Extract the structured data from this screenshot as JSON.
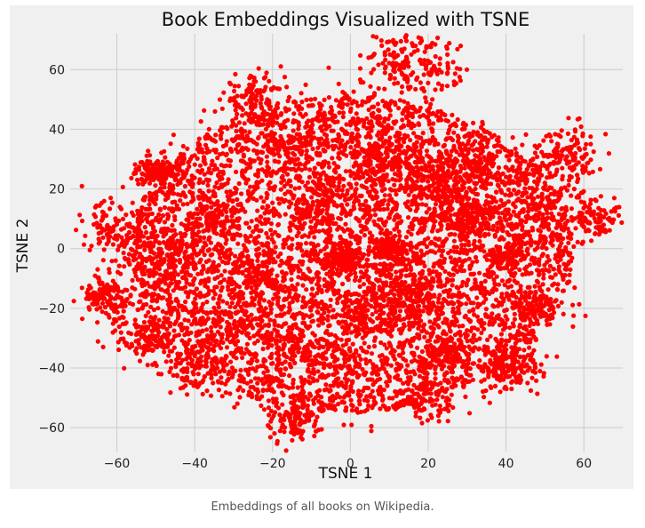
{
  "caption": "Embeddings of all books on Wikipedia.",
  "colors": {
    "background": "#f0f0f0",
    "grid": "#cbcbcb",
    "points": "#ff0000"
  },
  "chart_data": {
    "type": "scatter",
    "title": "Book Embeddings Visualized with TSNE",
    "xlabel": "TSNE 1",
    "ylabel": "TSNE 2",
    "xlim": [
      -72,
      70
    ],
    "ylim": [
      -68,
      72
    ],
    "xticks": [
      -60,
      -40,
      -20,
      0,
      20,
      40,
      60
    ],
    "yticks": [
      -60,
      -40,
      -20,
      0,
      20,
      40,
      60
    ],
    "xtick_labels": [
      "−60",
      "−40",
      "−20",
      "0",
      "20",
      "40",
      "60"
    ],
    "ytick_labels": [
      "−60",
      "−40",
      "−20",
      "0",
      "20",
      "40",
      "60"
    ],
    "grid": true,
    "marker_color": "#ff0000",
    "distribution": {
      "main_center": [
        0,
        -2
      ],
      "main_radii": [
        56,
        52
      ],
      "clusters": [
        [
          -50,
          26
        ],
        [
          -25,
          50
        ],
        [
          12,
          63
        ],
        [
          20,
          59
        ],
        [
          -18,
          34
        ],
        [
          -48,
          -5
        ],
        [
          -52,
          -30
        ],
        [
          -25,
          -8
        ],
        [
          -30,
          -25
        ],
        [
          -10,
          -35
        ],
        [
          -2,
          -3
        ],
        [
          8,
          28
        ],
        [
          22,
          23
        ],
        [
          40,
          -3
        ],
        [
          48,
          -20
        ],
        [
          55,
          31
        ],
        [
          63,
          10
        ],
        [
          -15,
          -58
        ],
        [
          20,
          -50
        ],
        [
          25,
          -35
        ],
        [
          5,
          -22
        ],
        [
          30,
          10
        ],
        [
          -35,
          10
        ],
        [
          -8,
          15
        ],
        [
          42,
          -40
        ],
        [
          50,
          12
        ],
        [
          10,
          0
        ],
        [
          15,
          -15
        ],
        [
          -40,
          -40
        ],
        [
          35,
          25
        ],
        [
          -60,
          7
        ],
        [
          -62,
          -17
        ]
      ]
    }
  }
}
